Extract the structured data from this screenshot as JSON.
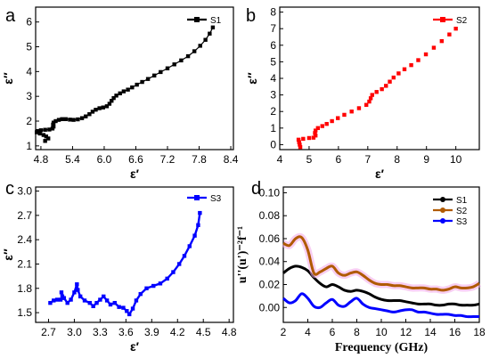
{
  "chart_data": [
    {
      "panel": "a",
      "type": "scatter",
      "xlabel": "ε′",
      "ylabel": "ε″",
      "xlim": [
        4.7,
        8.45
      ],
      "ylim": [
        0.85,
        6.6
      ],
      "xticks": [
        4.8,
        5.4,
        6.0,
        6.6,
        7.2,
        7.8,
        8.4
      ],
      "yticks": [
        1,
        2,
        3,
        4,
        5,
        6
      ],
      "legend_position": "top-right",
      "series": [
        {
          "name": "S1",
          "color": "#000000",
          "marker": "square",
          "points": [
            [
              4.88,
              1.2
            ],
            [
              4.94,
              1.3
            ],
            [
              4.9,
              1.38
            ],
            [
              4.85,
              1.44
            ],
            [
              4.78,
              1.5
            ],
            [
              4.72,
              1.55
            ],
            [
              4.74,
              1.6
            ],
            [
              4.8,
              1.63
            ],
            [
              4.88,
              1.65
            ],
            [
              4.96,
              1.66
            ],
            [
              5.02,
              1.7
            ],
            [
              5.04,
              1.78
            ],
            [
              5.03,
              1.86
            ],
            [
              5.04,
              1.94
            ],
            [
              5.08,
              2.0
            ],
            [
              5.14,
              2.05
            ],
            [
              5.2,
              2.08
            ],
            [
              5.27,
              2.08
            ],
            [
              5.35,
              2.06
            ],
            [
              5.42,
              2.05
            ],
            [
              5.5,
              2.07
            ],
            [
              5.58,
              2.12
            ],
            [
              5.65,
              2.19
            ],
            [
              5.72,
              2.28
            ],
            [
              5.78,
              2.38
            ],
            [
              5.84,
              2.46
            ],
            [
              5.91,
              2.52
            ],
            [
              5.98,
              2.55
            ],
            [
              6.05,
              2.6
            ],
            [
              6.1,
              2.7
            ],
            [
              6.14,
              2.82
            ],
            [
              6.18,
              2.93
            ],
            [
              6.23,
              3.03
            ],
            [
              6.3,
              3.12
            ],
            [
              6.37,
              3.2
            ],
            [
              6.45,
              3.27
            ],
            [
              6.53,
              3.36
            ],
            [
              6.62,
              3.47
            ],
            [
              6.72,
              3.58
            ],
            [
              6.83,
              3.7
            ],
            [
              6.95,
              3.84
            ],
            [
              7.07,
              3.98
            ],
            [
              7.2,
              4.13
            ],
            [
              7.33,
              4.29
            ],
            [
              7.46,
              4.45
            ],
            [
              7.59,
              4.62
            ],
            [
              7.71,
              4.82
            ],
            [
              7.82,
              5.04
            ],
            [
              7.92,
              5.28
            ],
            [
              8.0,
              5.53
            ],
            [
              8.06,
              5.78
            ]
          ]
        }
      ]
    },
    {
      "panel": "b",
      "type": "scatter",
      "xlabel": "ε′",
      "ylabel": "ε″",
      "xlim": [
        4.0,
        10.8
      ],
      "ylim": [
        -0.3,
        8.3
      ],
      "xticks": [
        4,
        5,
        6,
        7,
        8,
        9,
        10
      ],
      "yticks": [
        0,
        1,
        2,
        3,
        4,
        5,
        6,
        7,
        8
      ],
      "legend_position": "top-right",
      "series": [
        {
          "name": "S2",
          "color": "#ff0000",
          "marker": "square",
          "points": [
            [
              4.7,
              -0.15
            ],
            [
              4.68,
              0.0
            ],
            [
              4.66,
              0.15
            ],
            [
              4.64,
              0.3
            ],
            [
              4.8,
              0.35
            ],
            [
              5.0,
              0.4
            ],
            [
              5.15,
              0.42
            ],
            [
              5.22,
              0.55
            ],
            [
              5.2,
              0.7
            ],
            [
              5.22,
              0.85
            ],
            [
              5.3,
              1.0
            ],
            [
              5.45,
              1.12
            ],
            [
              5.6,
              1.25
            ],
            [
              5.78,
              1.42
            ],
            [
              5.98,
              1.6
            ],
            [
              6.2,
              1.8
            ],
            [
              6.45,
              2.0
            ],
            [
              6.7,
              2.2
            ],
            [
              6.95,
              2.4
            ],
            [
              7.05,
              2.6
            ],
            [
              7.1,
              2.8
            ],
            [
              7.15,
              3.0
            ],
            [
              7.3,
              3.18
            ],
            [
              7.48,
              3.35
            ],
            [
              7.62,
              3.55
            ],
            [
              7.75,
              3.8
            ],
            [
              7.88,
              4.05
            ],
            [
              8.05,
              4.3
            ],
            [
              8.25,
              4.55
            ],
            [
              8.48,
              4.8
            ],
            [
              8.72,
              5.1
            ],
            [
              8.98,
              5.45
            ],
            [
              9.25,
              5.85
            ],
            [
              9.52,
              6.25
            ],
            [
              9.78,
              6.65
            ],
            [
              10.0,
              7.0
            ]
          ]
        }
      ]
    },
    {
      "panel": "c",
      "type": "line",
      "xlabel": "ε′",
      "ylabel": "ε″",
      "xlim": [
        2.55,
        4.85
      ],
      "ylim": [
        1.38,
        3.05
      ],
      "xticks": [
        2.7,
        3.0,
        3.3,
        3.6,
        3.9,
        4.2,
        4.5,
        4.8
      ],
      "yticks": [
        1.5,
        1.8,
        2.1,
        2.4,
        2.7,
        3.0
      ],
      "legend_position": "top-right",
      "series": [
        {
          "name": "S3",
          "color": "#0000ff",
          "marker": "square",
          "points": [
            [
              2.72,
              1.62
            ],
            [
              2.76,
              1.65
            ],
            [
              2.8,
              1.66
            ],
            [
              2.84,
              1.66
            ],
            [
              2.86,
              1.7
            ],
            [
              2.85,
              1.75
            ],
            [
              2.88,
              1.68
            ],
            [
              2.92,
              1.62
            ],
            [
              2.96,
              1.66
            ],
            [
              3.0,
              1.75
            ],
            [
              3.03,
              1.85
            ],
            [
              3.04,
              1.78
            ],
            [
              3.07,
              1.7
            ],
            [
              3.12,
              1.65
            ],
            [
              3.18,
              1.62
            ],
            [
              3.22,
              1.58
            ],
            [
              3.26,
              1.62
            ],
            [
              3.3,
              1.66
            ],
            [
              3.34,
              1.7
            ],
            [
              3.38,
              1.65
            ],
            [
              3.42,
              1.6
            ],
            [
              3.47,
              1.62
            ],
            [
              3.52,
              1.57
            ],
            [
              3.57,
              1.56
            ],
            [
              3.61,
              1.52
            ],
            [
              3.64,
              1.48
            ],
            [
              3.68,
              1.55
            ],
            [
              3.72,
              1.65
            ],
            [
              3.77,
              1.73
            ],
            [
              3.84,
              1.8
            ],
            [
              3.92,
              1.83
            ],
            [
              4.0,
              1.86
            ],
            [
              4.08,
              1.92
            ],
            [
              4.15,
              2.0
            ],
            [
              4.22,
              2.1
            ],
            [
              4.28,
              2.2
            ],
            [
              4.34,
              2.32
            ],
            [
              4.4,
              2.45
            ],
            [
              4.44,
              2.58
            ],
            [
              4.46,
              2.73
            ]
          ]
        }
      ]
    },
    {
      "panel": "d",
      "type": "line",
      "xlabel": "Frequency (GHz)",
      "ylabel": "u''(u')⁻²f⁻¹",
      "xlim": [
        2,
        18
      ],
      "ylim": [
        -0.013,
        0.105
      ],
      "xticks": [
        2,
        4,
        6,
        8,
        10,
        12,
        14,
        16,
        18
      ],
      "yticks": [
        0.0,
        0.02,
        0.04,
        0.06,
        0.08,
        0.1
      ],
      "ytick_labels": [
        "0.00",
        "0.02",
        "0.04",
        "0.06",
        "0.08",
        "0.10"
      ],
      "legend_position": "top-right",
      "series": [
        {
          "name": "S1",
          "color": "#000000",
          "x": [
            2.0,
            2.5,
            3.0,
            3.5,
            4.0,
            4.5,
            5.0,
            5.5,
            6.0,
            6.5,
            7.0,
            7.5,
            8.0,
            8.5,
            9.0,
            9.5,
            10.0,
            10.5,
            11.0,
            11.5,
            12.0,
            12.5,
            13.0,
            13.5,
            14.0,
            14.5,
            15.0,
            15.5,
            16.0,
            16.5,
            17.0,
            17.5,
            18.0
          ],
          "y": [
            0.03,
            0.034,
            0.036,
            0.035,
            0.032,
            0.026,
            0.021,
            0.018,
            0.02,
            0.018,
            0.015,
            0.014,
            0.015,
            0.014,
            0.012,
            0.009,
            0.007,
            0.006,
            0.006,
            0.006,
            0.005,
            0.004,
            0.003,
            0.003,
            0.003,
            0.002,
            0.002,
            0.003,
            0.003,
            0.002,
            0.002,
            0.002,
            0.003
          ]
        },
        {
          "name": "S2",
          "color": "#b05a00",
          "x": [
            2.0,
            2.5,
            3.0,
            3.5,
            4.0,
            4.5,
            5.0,
            5.5,
            6.0,
            6.5,
            7.0,
            7.5,
            8.0,
            8.5,
            9.0,
            9.5,
            10.0,
            10.5,
            11.0,
            11.5,
            12.0,
            12.5,
            13.0,
            13.5,
            14.0,
            14.5,
            15.0,
            15.5,
            16.0,
            16.5,
            17.0,
            17.5,
            18.0
          ],
          "y": [
            0.056,
            0.054,
            0.06,
            0.061,
            0.05,
            0.03,
            0.031,
            0.034,
            0.036,
            0.03,
            0.028,
            0.03,
            0.031,
            0.028,
            0.024,
            0.021,
            0.02,
            0.02,
            0.019,
            0.019,
            0.018,
            0.017,
            0.017,
            0.017,
            0.016,
            0.016,
            0.015,
            0.016,
            0.018,
            0.017,
            0.017,
            0.018,
            0.021
          ]
        },
        {
          "name": "S3",
          "color": "#0000ff",
          "x": [
            2.0,
            2.5,
            3.0,
            3.5,
            4.0,
            4.5,
            5.0,
            5.5,
            6.0,
            6.5,
            7.0,
            7.5,
            8.0,
            8.5,
            9.0,
            9.5,
            10.0,
            10.5,
            11.0,
            11.5,
            12.0,
            12.5,
            13.0,
            13.5,
            14.0,
            14.5,
            15.0,
            15.5,
            16.0,
            16.5,
            17.0,
            17.5,
            18.0
          ],
          "y": [
            0.008,
            0.004,
            0.006,
            0.012,
            0.008,
            0.001,
            0.0,
            0.004,
            0.007,
            0.002,
            0.001,
            0.005,
            0.008,
            0.003,
            0.0,
            -0.001,
            -0.002,
            -0.003,
            -0.004,
            -0.003,
            -0.002,
            -0.002,
            -0.004,
            -0.004,
            -0.005,
            -0.006,
            -0.006,
            -0.006,
            -0.007,
            -0.007,
            -0.008,
            -0.008,
            -0.008
          ]
        }
      ]
    }
  ]
}
